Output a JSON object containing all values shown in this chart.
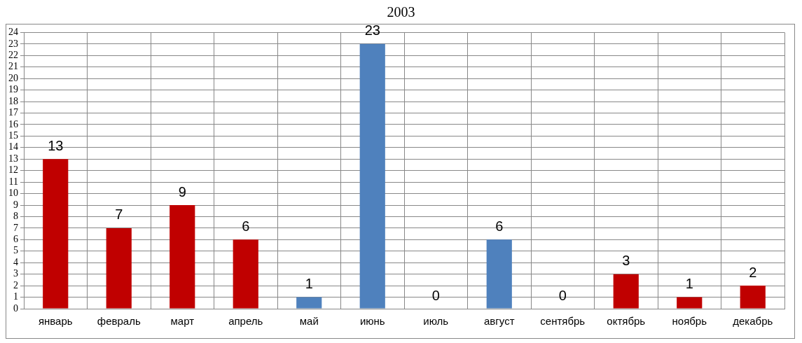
{
  "chart_data": {
    "type": "bar",
    "title": "2003",
    "categories": [
      "январь",
      "февраль",
      "март",
      "апрель",
      "май",
      "июнь",
      "июль",
      "август",
      "сентябрь",
      "октябрь",
      "ноябрь",
      "декабрь"
    ],
    "values": [
      13,
      7,
      9,
      6,
      1,
      23,
      0,
      6,
      0,
      3,
      1,
      2
    ],
    "colors": [
      "#c00000",
      "#c00000",
      "#c00000",
      "#c00000",
      "#4f81bd",
      "#4f81bd",
      "#4f81bd",
      "#4f81bd",
      "#c00000",
      "#c00000",
      "#c00000",
      "#c00000"
    ],
    "ylim": [
      0,
      24
    ],
    "yticks": [
      0,
      1,
      2,
      3,
      4,
      5,
      6,
      7,
      8,
      9,
      10,
      11,
      12,
      13,
      14,
      15,
      16,
      17,
      18,
      19,
      20,
      21,
      22,
      23,
      24
    ],
    "grid": true,
    "data_labels": true
  }
}
